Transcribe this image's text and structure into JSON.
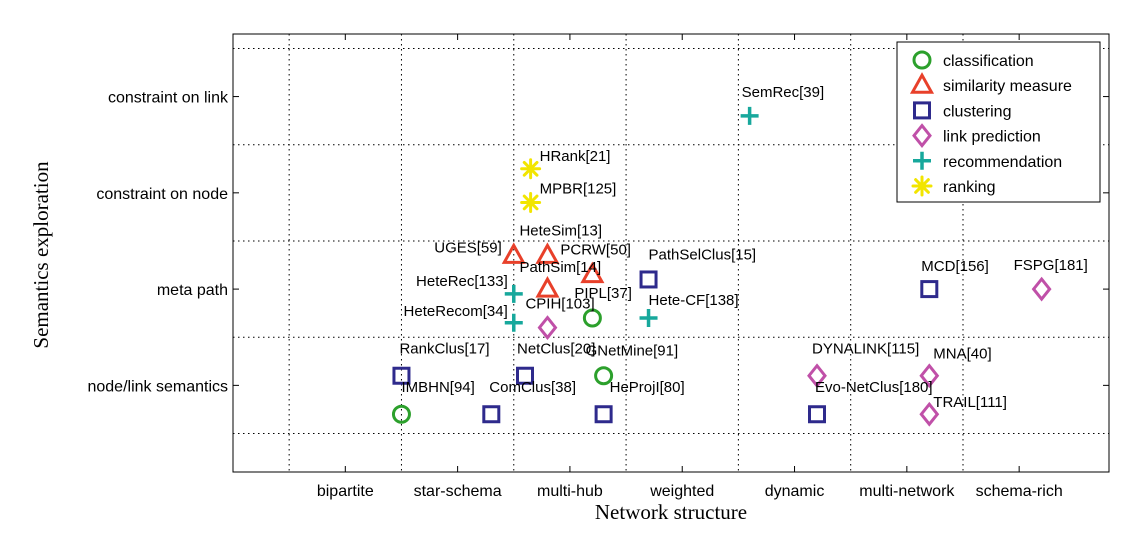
{
  "chart_data": {
    "type": "scatter",
    "xlabel": "Network structure",
    "ylabel": "Semantics exploration",
    "x_categories": [
      "bipartite",
      "star-schema",
      "multi-hub",
      "weighted",
      "dynamic",
      "multi-network",
      "schema-rich"
    ],
    "y_categories": [
      "node/link semantics",
      "meta path",
      "constraint on node",
      "constraint  on link"
    ],
    "xlim": [
      0,
      7.8
    ],
    "ylim": [
      0.1,
      4.65
    ],
    "grid": true,
    "legend_position": "top-right",
    "colors": {
      "classification": "#2ca02c",
      "similarity measure": "#e8402a",
      "clustering": "#2e2a8c",
      "link prediction": "#c050a8",
      "recommendation": "#17a89c",
      "ranking": "#f2e500"
    },
    "series": [
      {
        "name": "classification",
        "marker": "circle",
        "points": [
          {
            "x": 1.5,
            "y": 0.7,
            "label": "IMBHN[94]"
          },
          {
            "x": 3.3,
            "y": 1.1,
            "label": "GNetMine[91]"
          },
          {
            "x": 3.2,
            "y": 1.7,
            "label": "PIPL[37]"
          }
        ]
      },
      {
        "name": "similarity measure",
        "marker": "triangle",
        "points": [
          {
            "x": 2.5,
            "y": 2.35,
            "label": "UGES[59]"
          },
          {
            "x": 2.8,
            "y": 2.35,
            "label": "HeteSim[13]"
          },
          {
            "x": 2.8,
            "y": 2.0,
            "label": "PathSim[14]"
          },
          {
            "x": 3.2,
            "y": 2.15,
            "label": "PCRW[50]"
          }
        ]
      },
      {
        "name": "clustering",
        "marker": "square",
        "points": [
          {
            "x": 1.5,
            "y": 1.1,
            "label": "RankClus[17]"
          },
          {
            "x": 2.3,
            "y": 0.7,
            "label": "ComClus[38]"
          },
          {
            "x": 2.6,
            "y": 1.1,
            "label": "NetClus[20]"
          },
          {
            "x": 3.3,
            "y": 0.7,
            "label": "HeProjI[80]"
          },
          {
            "x": 3.7,
            "y": 2.1,
            "label": "PathSelClus[15]"
          },
          {
            "x": 5.2,
            "y": 0.7,
            "label": "Evo-NetClus[180]"
          },
          {
            "x": 6.2,
            "y": 2.0,
            "label": "MCD[156]"
          }
        ]
      },
      {
        "name": "link prediction",
        "marker": "diamond",
        "points": [
          {
            "x": 2.8,
            "y": 1.6,
            "label": "CPIH[103]"
          },
          {
            "x": 5.2,
            "y": 1.1,
            "label": "DYNALINK[115]"
          },
          {
            "x": 6.2,
            "y": 1.1,
            "label": "MNA[40]"
          },
          {
            "x": 6.2,
            "y": 0.7,
            "label": "TRAIL[111]"
          },
          {
            "x": 7.2,
            "y": 2.0,
            "label": "FSPG[181]"
          }
        ]
      },
      {
        "name": "recommendation",
        "marker": "plus",
        "points": [
          {
            "x": 4.6,
            "y": 3.8,
            "label": "SemRec[39]"
          },
          {
            "x": 2.5,
            "y": 1.95,
            "label": "HeteRec[133]"
          },
          {
            "x": 2.5,
            "y": 1.65,
            "label": "HeteRecom[34]"
          },
          {
            "x": 3.7,
            "y": 1.7,
            "label": "Hete-CF[138]"
          }
        ]
      },
      {
        "name": "ranking",
        "marker": "asterisk",
        "points": [
          {
            "x": 2.65,
            "y": 3.25,
            "label": "HRank[21]"
          },
          {
            "x": 2.65,
            "y": 2.9,
            "label": "MPBR[125]"
          }
        ]
      }
    ]
  }
}
